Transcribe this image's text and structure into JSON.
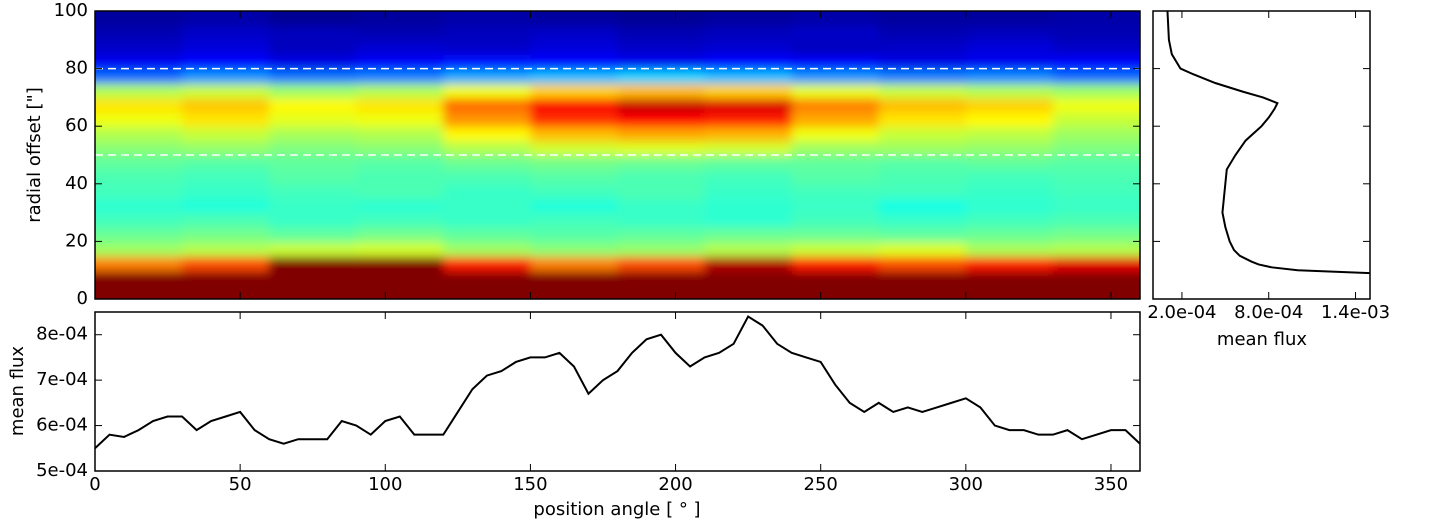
{
  "chart_data": [
    {
      "type": "heatmap",
      "ylabel": "radial offset [\"]",
      "colormap": "jet",
      "xlim": [
        0,
        360
      ],
      "ylim": [
        0,
        100
      ],
      "yticks": [
        0,
        20,
        40,
        60,
        80,
        100
      ],
      "zlim": [
        5e-05,
        0.00105
      ],
      "reference_lines": [
        80,
        50
      ],
      "x": [
        15,
        45,
        75,
        105,
        135,
        165,
        195,
        225,
        255,
        285,
        315,
        345
      ],
      "y": [
        2.5,
        7.5,
        12.5,
        17.5,
        22.5,
        27.5,
        32.5,
        37.5,
        42.5,
        47.5,
        52.5,
        57.5,
        62.5,
        67.5,
        72.5,
        77.5,
        82.5,
        87.5,
        92.5,
        97.5
      ],
      "z": [
        [
          0.002,
          0.002,
          0.002,
          0.002,
          0.002,
          0.002,
          0.002,
          0.002,
          0.002,
          0.002,
          0.002,
          0.002
        ],
        [
          0.0015,
          0.0015,
          0.0015,
          0.0015,
          0.0015,
          0.0015,
          0.0015,
          0.0015,
          0.0015,
          0.0015,
          0.0015,
          0.0015
        ],
        [
          0.0008,
          0.00085,
          0.0011,
          0.0012,
          0.0009,
          0.0008,
          0.00085,
          0.001,
          0.0009,
          0.00085,
          0.0009,
          0.00095
        ],
        [
          0.00058,
          0.0006,
          0.00062,
          0.00063,
          0.00058,
          0.00056,
          0.00057,
          0.0006,
          0.00062,
          0.00064,
          0.00059,
          0.0006
        ],
        [
          0.00053,
          0.00054,
          0.00052,
          0.00054,
          0.00052,
          0.00051,
          0.00052,
          0.00053,
          0.00053,
          0.00052,
          0.00053,
          0.00054
        ],
        [
          0.00049,
          0.0005,
          0.00048,
          0.00049,
          0.00048,
          0.00049,
          0.00048,
          0.00047,
          0.00049,
          0.00048,
          0.00049,
          0.0005
        ],
        [
          0.00047,
          0.00046,
          0.00048,
          0.00047,
          0.00048,
          0.00046,
          0.00048,
          0.00047,
          0.00048,
          0.00045,
          0.00047,
          0.00048
        ],
        [
          0.00049,
          0.00048,
          0.00049,
          0.0005,
          0.00048,
          0.00049,
          0.0005,
          0.00048,
          0.00049,
          0.00049,
          0.00048,
          0.00049
        ],
        [
          0.0005,
          0.00049,
          0.00051,
          0.0005,
          0.0005,
          0.00051,
          0.0005,
          0.00049,
          0.00051,
          0.0005,
          0.00049,
          0.0005
        ],
        [
          0.00052,
          0.00051,
          0.00052,
          0.00051,
          0.00053,
          0.00054,
          0.00053,
          0.00052,
          0.00052,
          0.00051,
          0.00052,
          0.00051
        ],
        [
          0.00056,
          0.00057,
          0.00055,
          0.00056,
          0.0006,
          0.00063,
          0.00064,
          0.00063,
          0.00058,
          0.00058,
          0.00057,
          0.00055
        ],
        [
          0.0006,
          0.00062,
          0.00059,
          0.0006,
          0.00068,
          0.00074,
          0.00076,
          0.00075,
          0.00066,
          0.00062,
          0.00061,
          0.00058
        ],
        [
          0.00066,
          0.0007,
          0.00065,
          0.00066,
          0.00078,
          0.00088,
          0.00092,
          0.0009,
          0.00076,
          0.0007,
          0.00068,
          0.00062
        ],
        [
          0.0007,
          0.00073,
          0.00068,
          0.0007,
          0.00082,
          0.00093,
          0.00098,
          0.00096,
          0.0008,
          0.00074,
          0.00072,
          0.00066
        ],
        [
          0.0006,
          0.00062,
          0.00058,
          0.0006,
          0.00066,
          0.00072,
          0.00074,
          0.00072,
          0.00065,
          0.00062,
          0.0006,
          0.00058
        ],
        [
          0.00028,
          0.00032,
          0.00029,
          0.0003,
          0.00034,
          0.00036,
          0.00038,
          0.00036,
          0.00032,
          0.0003,
          0.00031,
          0.00028
        ],
        [
          0.00016,
          0.00018,
          0.00015,
          0.00017,
          0.00019,
          0.00018,
          0.00016,
          0.00018,
          0.00017,
          0.00015,
          0.00016,
          0.00017
        ],
        [
          0.00012,
          0.00014,
          0.00011,
          0.00013,
          0.00012,
          0.00014,
          0.00012,
          0.00013,
          0.00011,
          0.00012,
          0.00014,
          0.00012
        ],
        [
          0.0001,
          0.00012,
          0.00011,
          0.0001,
          0.00011,
          0.00012,
          0.0001,
          0.00011,
          0.00012,
          0.0001,
          0.00011,
          0.0001
        ],
        [
          8e-05,
          9e-05,
          7e-05,
          8e-05,
          9e-05,
          8e-05,
          7e-05,
          8e-05,
          9e-05,
          8e-05,
          8e-05,
          9e-05
        ]
      ]
    },
    {
      "type": "line",
      "orientation": "horizontal",
      "xlabel": "mean flux",
      "color": "#000000",
      "xlim": [
        0,
        0.0015
      ],
      "ylim": [
        0,
        100
      ],
      "xticks": [
        {
          "value": 0.0002,
          "label": "2.0e-04"
        },
        {
          "value": 0.0008,
          "label": "8.0e-04"
        },
        {
          "value": 0.0014,
          "label": "1.4e-03"
        }
      ],
      "y": [
        9,
        10,
        11,
        12,
        13,
        15,
        17,
        20,
        25,
        30,
        35,
        40,
        45,
        50,
        55,
        60,
        63,
        66,
        68,
        70,
        72,
        75,
        78,
        80,
        85,
        90,
        95,
        100
      ],
      "values": [
        0.0015,
        0.001,
        0.00082,
        0.00073,
        0.00068,
        0.0006,
        0.00056,
        0.00053,
        0.0005,
        0.00048,
        0.00049,
        0.0005,
        0.00051,
        0.00057,
        0.00064,
        0.00075,
        0.0008,
        0.00084,
        0.00086,
        0.00076,
        0.00062,
        0.00043,
        0.00028,
        0.00019,
        0.00013,
        0.00011,
        0.000105,
        0.0001
      ]
    },
    {
      "type": "line",
      "xlabel": "position angle [ ° ]",
      "ylabel": "mean flux",
      "color": "#000000",
      "xlim": [
        0,
        360
      ],
      "ylim": [
        0.0005,
        0.00085
      ],
      "xticks": [
        0,
        50,
        100,
        150,
        200,
        250,
        300,
        350
      ],
      "yticks": [
        {
          "value": 0.0005,
          "label": "5e-04"
        },
        {
          "value": 0.0006,
          "label": "6e-04"
        },
        {
          "value": 0.0007,
          "label": "7e-04"
        },
        {
          "value": 0.0008,
          "label": "8e-04"
        }
      ],
      "x": [
        0,
        5,
        10,
        15,
        20,
        25,
        30,
        35,
        40,
        45,
        50,
        55,
        60,
        65,
        70,
        75,
        80,
        85,
        90,
        95,
        100,
        105,
        110,
        115,
        120,
        125,
        130,
        135,
        140,
        145,
        150,
        155,
        160,
        165,
        170,
        175,
        180,
        185,
        190,
        195,
        200,
        205,
        210,
        215,
        220,
        225,
        230,
        235,
        240,
        245,
        250,
        255,
        260,
        265,
        270,
        275,
        280,
        285,
        290,
        295,
        300,
        305,
        310,
        315,
        320,
        325,
        330,
        335,
        340,
        345,
        350,
        355,
        360
      ],
      "values": [
        0.00055,
        0.00058,
        0.000575,
        0.00059,
        0.00061,
        0.00062,
        0.00062,
        0.00059,
        0.00061,
        0.00062,
        0.00063,
        0.00059,
        0.00057,
        0.00056,
        0.00057,
        0.00057,
        0.00057,
        0.00061,
        0.0006,
        0.00058,
        0.00061,
        0.00062,
        0.00058,
        0.00058,
        0.00058,
        0.00063,
        0.00068,
        0.00071,
        0.00072,
        0.00074,
        0.00075,
        0.00075,
        0.00076,
        0.00073,
        0.00067,
        0.0007,
        0.00072,
        0.00076,
        0.00079,
        0.0008,
        0.00076,
        0.00073,
        0.00075,
        0.00076,
        0.00078,
        0.00084,
        0.00082,
        0.00078,
        0.00076,
        0.00075,
        0.00074,
        0.00069,
        0.00065,
        0.00063,
        0.00065,
        0.00063,
        0.00064,
        0.00063,
        0.00064,
        0.00065,
        0.00066,
        0.00064,
        0.0006,
        0.00059,
        0.00059,
        0.00058,
        0.00058,
        0.00059,
        0.00057,
        0.00058,
        0.00059,
        0.00059,
        0.00056
      ]
    }
  ]
}
